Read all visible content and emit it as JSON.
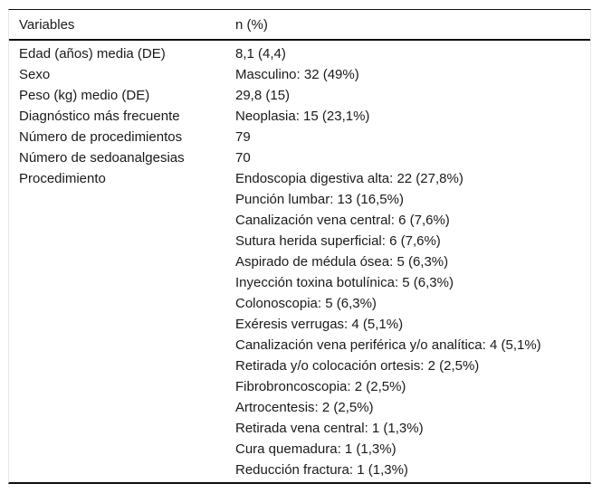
{
  "table": {
    "header": {
      "variables": "Variables",
      "n_pct": "n (%)"
    },
    "rows": [
      {
        "label": "Edad (años) media (DE)",
        "values": [
          "8,1 (4,4)"
        ]
      },
      {
        "label": "Sexo",
        "values": [
          "Masculino: 32 (49%)"
        ]
      },
      {
        "label": "Peso (kg) medio (DE)",
        "values": [
          "29,8 (15)"
        ]
      },
      {
        "label": "Diagnóstico más frecuente",
        "values": [
          "Neoplasia: 15 (23,1%)"
        ]
      },
      {
        "label": "Número de procedimientos",
        "values": [
          "79"
        ]
      },
      {
        "label": "Número de sedoanalgesias",
        "values": [
          "70"
        ]
      },
      {
        "label": "Procedimiento",
        "values": [
          "Endoscopia digestiva alta: 22 (27,8%)",
          "Punción lumbar: 13 (16,5%)",
          "Canalización vena central: 6 (7,6%)",
          "Sutura herida superficial: 6 (7,6%)",
          "Aspirado de médula ósea: 5 (6,3%)",
          "Inyección toxina botulínica: 5 (6,3%)",
          "Colonoscopia: 5 (6,3%)",
          "Exéresis verrugas: 4 (5,1%)",
          "Canalización vena periférica y/o analítica: 4 (5,1%)",
          "Retirada y/o colocación ortesis: 2 (2,5%)",
          "Fibrobroncoscopia: 2 (2,5%)",
          "Artrocentesis: 2 (2,5%)",
          "Retirada vena central: 1 (1,3%)",
          "Cura quemadura: 1 (1,3%)",
          "Reducción fractura: 1 (1,3%)"
        ]
      }
    ],
    "colors": {
      "rule": "#0d0d0d",
      "side_border": "#e6e6e6",
      "text": "#1a1a1a",
      "background": "#ffffff"
    }
  }
}
